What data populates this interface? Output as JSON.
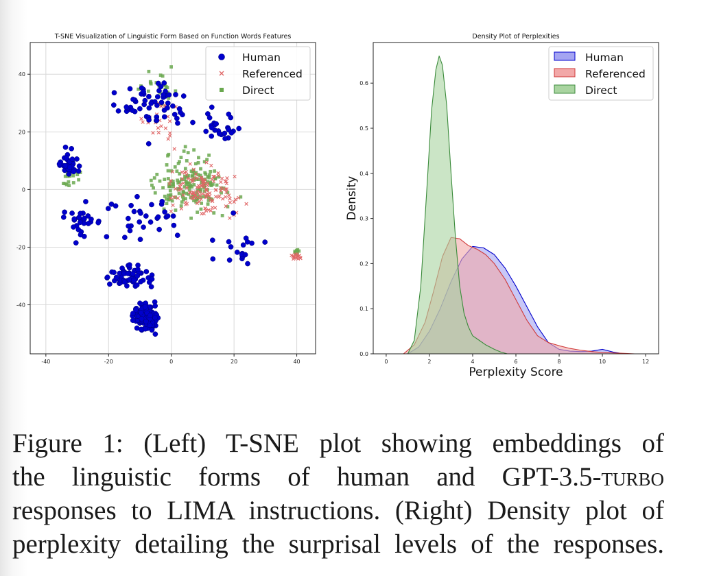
{
  "chart_data": [
    {
      "type": "scatter",
      "title": "T-SNE Visualization of Linguistic Form Based on Function Words Features",
      "xlabel": "",
      "ylabel": "",
      "xlim": [
        -45,
        46
      ],
      "ylim": [
        -57,
        51
      ],
      "xticks": [
        -40,
        -20,
        0,
        20,
        40
      ],
      "yticks": [
        -40,
        -20,
        0,
        20,
        40
      ],
      "grid": true,
      "legend_position": "top-right",
      "series": [
        {
          "name": "Human",
          "marker": "circle",
          "color": "#0000cc",
          "clusters": [
            {
              "center": [
                -8,
                -44
              ],
              "spread": [
                5,
                5
              ],
              "count": 150
            },
            {
              "center": [
                -12,
                -30
              ],
              "spread": [
                8,
                5
              ],
              "count": 60
            },
            {
              "center": [
                -33,
                8
              ],
              "spread": [
                5,
                6
              ],
              "count": 35
            },
            {
              "center": [
                -28,
                -12
              ],
              "spread": [
                6,
                8
              ],
              "count": 30
            },
            {
              "center": [
                -6,
                30
              ],
              "spread": [
                14,
                12
              ],
              "count": 60
            },
            {
              "center": [
                15,
                22
              ],
              "spread": [
                9,
                8
              ],
              "count": 25
            },
            {
              "center": [
                -8,
                -10
              ],
              "spread": [
                14,
                10
              ],
              "count": 30
            },
            {
              "center": [
                22,
                -20
              ],
              "spread": [
                10,
                10
              ],
              "count": 20
            }
          ]
        },
        {
          "name": "Referenced",
          "marker": "x",
          "color": "#e06666",
          "clusters": [
            {
              "center": [
                10,
                0
              ],
              "spread": [
                14,
                10
              ],
              "count": 130
            },
            {
              "center": [
                40,
                -23
              ],
              "spread": [
                2,
                1.5
              ],
              "count": 15
            },
            {
              "center": [
                -5,
                25
              ],
              "spread": [
                10,
                12
              ],
              "count": 25
            }
          ]
        },
        {
          "name": "Direct",
          "marker": "square",
          "color": "#6aa84f",
          "clusters": [
            {
              "center": [
                6,
                2
              ],
              "spread": [
                15,
                12
              ],
              "count": 170
            },
            {
              "center": [
                -32,
                4
              ],
              "spread": [
                5,
                4
              ],
              "count": 20
            },
            {
              "center": [
                40,
                -22
              ],
              "spread": [
                2,
                1.5
              ],
              "count": 8
            },
            {
              "center": [
                -5,
                35
              ],
              "spread": [
                8,
                8
              ],
              "count": 25
            }
          ]
        }
      ]
    },
    {
      "type": "area",
      "title": "Density Plot of Perplexities",
      "xlabel": "Perplexity Score",
      "ylabel": "Density",
      "xlim": [
        -0.6,
        12.6
      ],
      "ylim": [
        0,
        0.69
      ],
      "xticks": [
        0,
        2,
        4,
        6,
        8,
        10,
        12
      ],
      "yticks": [
        0.0,
        0.1,
        0.2,
        0.3,
        0.4,
        0.5,
        0.6
      ],
      "grid": false,
      "legend_position": "top-right",
      "series": [
        {
          "name": "Human",
          "color": "#0000cc",
          "fill": "#a4a4f2",
          "x": [
            1.0,
            1.5,
            2.0,
            2.5,
            3.0,
            3.5,
            4.0,
            4.5,
            5.0,
            5.5,
            6.0,
            6.5,
            7.0,
            7.5,
            8.0,
            8.5,
            9.0,
            9.5,
            10.0,
            10.5,
            11.0
          ],
          "y": [
            0.0,
            0.015,
            0.05,
            0.1,
            0.16,
            0.21,
            0.238,
            0.235,
            0.22,
            0.19,
            0.15,
            0.105,
            0.06,
            0.025,
            0.01,
            0.006,
            0.005,
            0.006,
            0.01,
            0.004,
            0.0
          ]
        },
        {
          "name": "Referenced",
          "color": "#d03a3a",
          "fill": "#f2a8a8",
          "x": [
            0.8,
            1.3,
            1.8,
            2.2,
            2.6,
            3.0,
            3.4,
            3.8,
            4.2,
            4.6,
            5.0,
            5.5,
            6.0,
            6.5,
            7.0,
            7.5,
            8.0,
            8.5,
            9.0,
            9.5,
            10.0,
            11.0,
            11.5
          ],
          "y": [
            0.0,
            0.02,
            0.07,
            0.14,
            0.215,
            0.258,
            0.255,
            0.24,
            0.232,
            0.22,
            0.2,
            0.165,
            0.12,
            0.075,
            0.04,
            0.025,
            0.018,
            0.012,
            0.008,
            0.005,
            0.003,
            0.001,
            0.0
          ]
        },
        {
          "name": "Direct",
          "color": "#3a8a3a",
          "fill": "#a9d4a0",
          "x": [
            1.0,
            1.3,
            1.6,
            1.9,
            2.1,
            2.3,
            2.45,
            2.6,
            2.8,
            3.0,
            3.2,
            3.4,
            3.6,
            3.8,
            4.0,
            4.3,
            4.6,
            5.0,
            5.3,
            5.6
          ],
          "y": [
            0.0,
            0.03,
            0.15,
            0.38,
            0.54,
            0.63,
            0.66,
            0.64,
            0.55,
            0.4,
            0.26,
            0.15,
            0.09,
            0.06,
            0.04,
            0.03,
            0.02,
            0.01,
            0.004,
            0.0
          ]
        }
      ]
    }
  ],
  "caption": {
    "line1": "Figure 1: (Left) T-SNE plot showing embeddings of",
    "line2_prefix": "the linguistic forms of human and GPT-3.5-",
    "line2_smallcaps": "turbo",
    "line3": "responses to LIMA instructions. (Right) Density plot of",
    "line4": "perplexity detailing the surprisal levels of the responses."
  }
}
